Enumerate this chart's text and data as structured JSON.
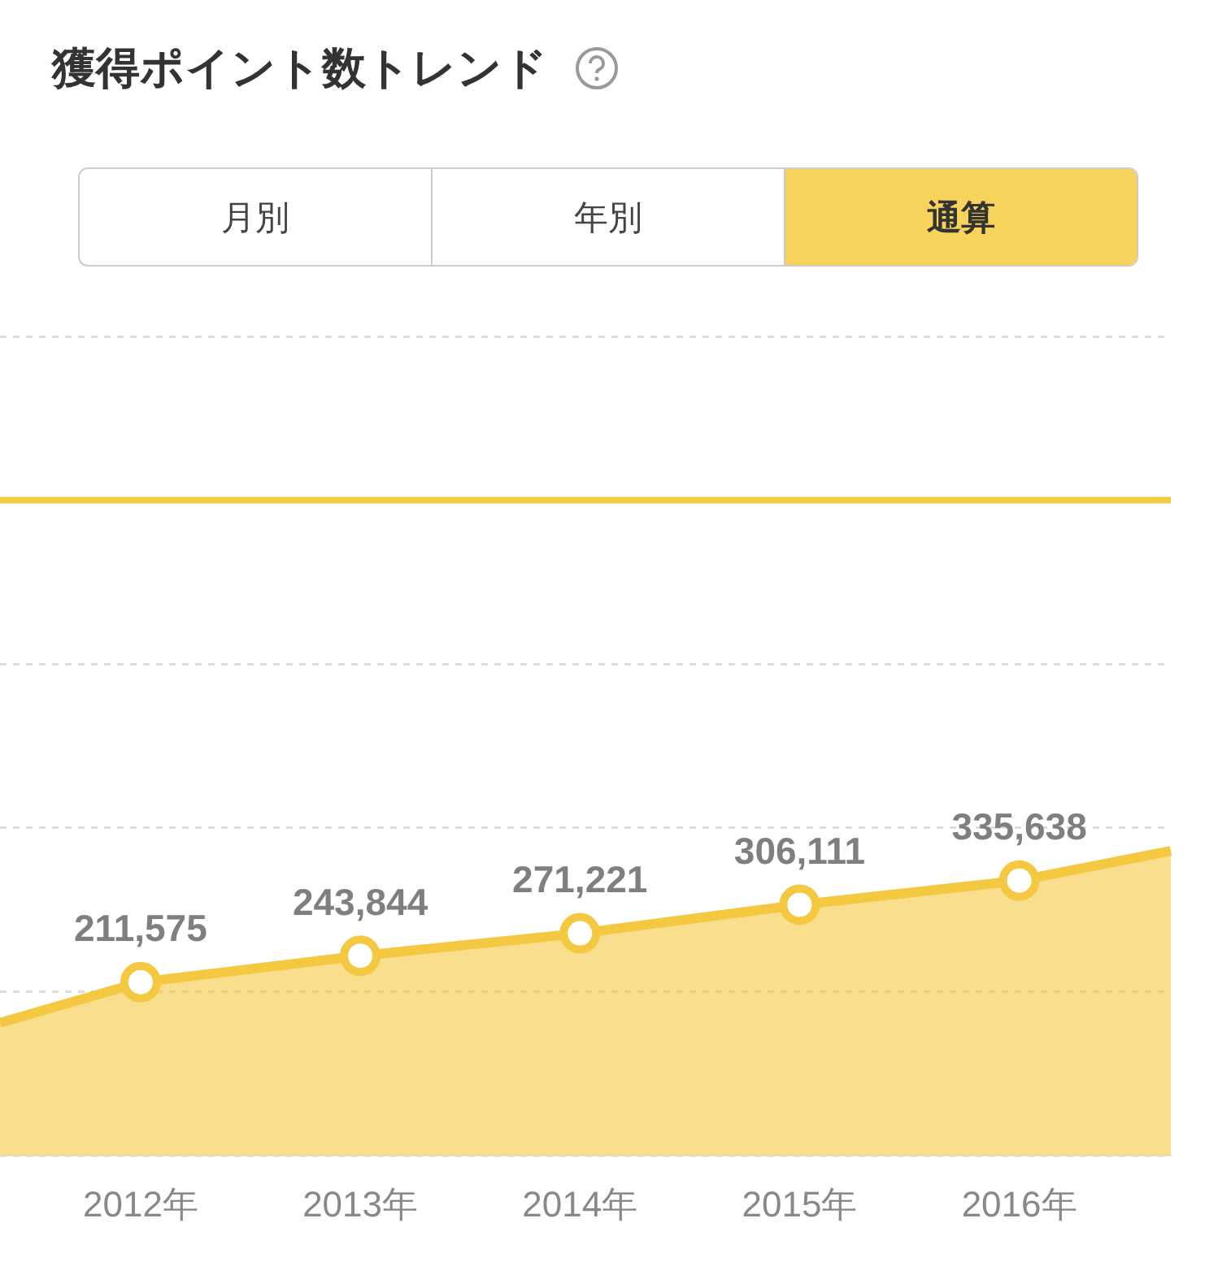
{
  "chart_data": {
    "type": "area",
    "title": "獲得ポイント数トレンド",
    "annotations": [
      "月別",
      "年別",
      "通算"
    ],
    "x": [
      2011.36,
      2012,
      2013,
      2014,
      2015,
      2016,
      2016.69
    ],
    "xlim": [
      2011.36,
      2016.69
    ],
    "xticks": [
      {
        "value": 2012,
        "label": "2012年"
      },
      {
        "value": 2013,
        "label": "2013年"
      },
      {
        "value": 2014,
        "label": "2014年"
      },
      {
        "value": 2015,
        "label": "2015年"
      },
      {
        "value": 2016,
        "label": "2016年"
      }
    ],
    "ylim": [
      0,
      1000000
    ],
    "yticks": [
      {
        "value": 0,
        "label": null
      },
      {
        "value": 200000,
        "label": null
      },
      {
        "value": 400000,
        "label": null
      },
      {
        "value": 600000,
        "label": null
      },
      {
        "value": 800000,
        "label": null
      },
      {
        "value": 1000000,
        "label": null
      }
    ],
    "series": [
      {
        "color": "#f5c842",
        "values": [
          162000,
          211575,
          243844,
          271221,
          306111,
          335638,
          372000
        ],
        "value_labels": [
          null,
          "211,575",
          "243,844",
          "271,221",
          "306,111",
          "335,638",
          null
        ]
      }
    ],
    "ref_lines": [
      {
        "axis": "y",
        "value": 800000,
        "color": "#f5c842"
      }
    ],
    "grid": "y",
    "marker": "circle",
    "tick_labels": "x",
    "legend": false
  }
}
